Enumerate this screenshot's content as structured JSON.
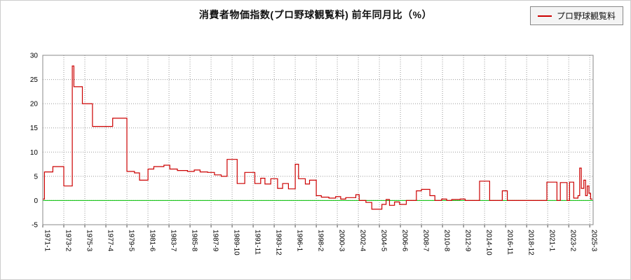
{
  "title": "消費者物価指数(プロ野球観覧料) 前年同月比（%）",
  "legend": {
    "label": "プロ野球観覧料"
  },
  "chart_data": {
    "type": "line",
    "step": true,
    "title": "消費者物価指数(プロ野球観覧料) 前年同月比（%）",
    "ylabel": "",
    "xlabel": "",
    "ylim": [
      -5,
      30
    ],
    "yticks": [
      -5,
      0,
      5,
      10,
      15,
      20,
      25,
      30
    ],
    "x_start": 1971.0,
    "x_end": 2025.5,
    "xtick_start": "1971-1",
    "xtick_interval_months": 25,
    "xtick_labels": [
      "1971-1",
      "1973-2",
      "1975-3",
      "1977-4",
      "1979-5",
      "1981-6",
      "1983-7",
      "1985-8",
      "1987-9",
      "1989-10",
      "1991-11",
      "1993-12",
      "1996-1",
      "1998-2",
      "2000-3",
      "2002-4",
      "2004-5",
      "2006-6",
      "2008-7",
      "2010-8",
      "2012-9",
      "2014-10",
      "2016-11",
      "2018-12",
      "2021-1",
      "2023-2",
      "2025-3"
    ],
    "grid": true,
    "legend_position": "top-right",
    "zero_line": {
      "value": 0,
      "color": "#00c000"
    },
    "series": [
      {
        "name": "プロ野球観覧料",
        "color": "#cc0000",
        "points": [
          [
            1971.0,
            0.3
          ],
          [
            1971.17,
            5.9
          ],
          [
            1972.0,
            7.0
          ],
          [
            1973.08,
            3.0
          ],
          [
            1973.92,
            27.8
          ],
          [
            1974.08,
            23.5
          ],
          [
            1974.92,
            20.0
          ],
          [
            1975.92,
            15.3
          ],
          [
            1977.92,
            17.0
          ],
          [
            1979.33,
            6.0
          ],
          [
            1980.08,
            5.7
          ],
          [
            1980.58,
            4.2
          ],
          [
            1981.42,
            6.5
          ],
          [
            1982.0,
            7.0
          ],
          [
            1983.0,
            7.3
          ],
          [
            1983.58,
            6.5
          ],
          [
            1984.33,
            6.2
          ],
          [
            1985.33,
            6.0
          ],
          [
            1986.0,
            6.3
          ],
          [
            1986.58,
            5.9
          ],
          [
            1987.33,
            5.8
          ],
          [
            1988.0,
            5.3
          ],
          [
            1988.67,
            5.0
          ],
          [
            1989.25,
            8.5
          ],
          [
            1990.25,
            3.5
          ],
          [
            1991.0,
            5.8
          ],
          [
            1992.0,
            3.5
          ],
          [
            1992.58,
            4.6
          ],
          [
            1993.0,
            3.4
          ],
          [
            1993.58,
            4.5
          ],
          [
            1994.25,
            2.5
          ],
          [
            1994.75,
            3.5
          ],
          [
            1995.33,
            2.4
          ],
          [
            1996.0,
            7.5
          ],
          [
            1996.33,
            4.5
          ],
          [
            1997.0,
            3.4
          ],
          [
            1997.42,
            4.2
          ],
          [
            1998.08,
            1.0
          ],
          [
            1998.58,
            0.7
          ],
          [
            1999.33,
            0.5
          ],
          [
            2000.0,
            0.8
          ],
          [
            2000.5,
            0.3
          ],
          [
            2001.0,
            0.6
          ],
          [
            2002.0,
            1.2
          ],
          [
            2002.33,
            0.0
          ],
          [
            2003.0,
            -0.4
          ],
          [
            2003.58,
            -1.8
          ],
          [
            2004.58,
            -0.8
          ],
          [
            2005.0,
            0.2
          ],
          [
            2005.33,
            -1.0
          ],
          [
            2005.83,
            -0.3
          ],
          [
            2006.33,
            -0.8
          ],
          [
            2007.0,
            0.0
          ],
          [
            2008.0,
            2.0
          ],
          [
            2008.5,
            2.3
          ],
          [
            2009.33,
            1.0
          ],
          [
            2009.83,
            0.0
          ],
          [
            2010.5,
            0.3
          ],
          [
            2011.0,
            0.0
          ],
          [
            2011.5,
            0.2
          ],
          [
            2012.33,
            0.3
          ],
          [
            2012.83,
            0.0
          ],
          [
            2014.25,
            4.0
          ],
          [
            2015.25,
            0.0
          ],
          [
            2016.5,
            2.0
          ],
          [
            2017.0,
            0.0
          ],
          [
            2020.92,
            3.8
          ],
          [
            2021.92,
            0.0
          ],
          [
            2022.25,
            3.7
          ],
          [
            2022.92,
            0.0
          ],
          [
            2023.17,
            3.8
          ],
          [
            2023.58,
            0.5
          ],
          [
            2024.0,
            1.0
          ],
          [
            2024.17,
            6.7
          ],
          [
            2024.33,
            2.5
          ],
          [
            2024.58,
            4.2
          ],
          [
            2024.75,
            1.0
          ],
          [
            2024.92,
            3.0
          ],
          [
            2025.08,
            1.5
          ],
          [
            2025.25,
            0.3
          ],
          [
            2025.42,
            0.3
          ]
        ]
      }
    ]
  }
}
